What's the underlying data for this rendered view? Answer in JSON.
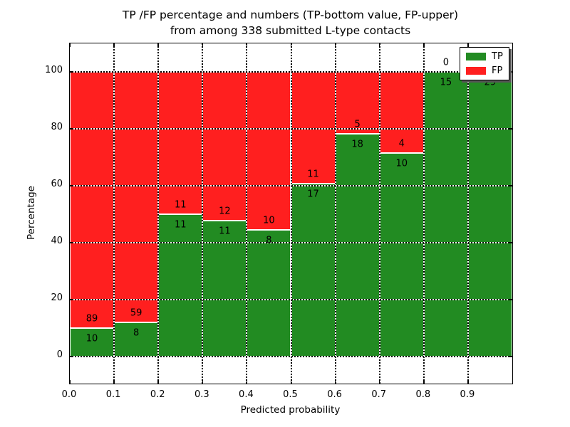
{
  "chart_data": {
    "type": "bar",
    "variant": "stacked-percentage",
    "title_line1": "TP /FP percentage and numbers (TP-bottom value, FP-upper)",
    "title_line2": "from among 338 submitted L-type contacts",
    "title": "TP /FP percentage and numbers (TP-bottom value, FP-upper)\nfrom among 338 submitted L-type contacts",
    "xlabel": "Predicted probability",
    "ylabel": "Percentage",
    "total_contacts": 338,
    "bin_width": 0.1,
    "categories": [
      "0.0-0.1",
      "0.1-0.2",
      "0.2-0.3",
      "0.3-0.4",
      "0.4-0.5",
      "0.5-0.6",
      "0.6-0.7",
      "0.7-0.8",
      "0.8-0.9",
      "0.9-1.0"
    ],
    "series": [
      {
        "name": "TP",
        "color": "#228b22",
        "counts": [
          10,
          8,
          11,
          11,
          8,
          17,
          18,
          10,
          15,
          29
        ]
      },
      {
        "name": "FP",
        "color": "#ff1f1f",
        "counts": [
          89,
          59,
          11,
          12,
          10,
          11,
          5,
          4,
          0,
          0
        ]
      }
    ],
    "tp_percent": [
      10.1,
      11.9,
      50.0,
      47.8,
      44.4,
      60.7,
      78.3,
      71.4,
      100.0,
      100.0
    ],
    "xticks": [
      "0.0",
      "0.1",
      "0.2",
      "0.3",
      "0.4",
      "0.5",
      "0.6",
      "0.7",
      "0.8",
      "0.9"
    ],
    "yticks": [
      0,
      20,
      40,
      60,
      80,
      100
    ],
    "xlim": [
      0.0,
      1.0
    ],
    "ylim": [
      -9.5,
      110
    ],
    "grid": "dotted",
    "legend": {
      "position": "upper-right",
      "entries": [
        {
          "label": "TP",
          "color": "#228b22"
        },
        {
          "label": "FP",
          "color": "#ff1f1f"
        }
      ]
    }
  }
}
